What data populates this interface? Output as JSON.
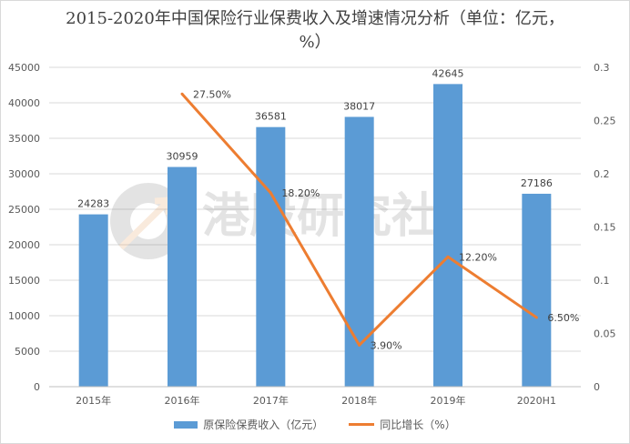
{
  "chart_data": {
    "type": "bar",
    "title": "2015-2020年中国保险行业保费收入及增速情况分析（单位：亿元，%）",
    "categories": [
      "2015年",
      "2016年",
      "2017年",
      "2018年",
      "2019年",
      "2020H1"
    ],
    "series": [
      {
        "name": "原保险保费收入（亿元）",
        "type": "bar",
        "axis": "left",
        "color": "#5b9bd5",
        "values": [
          24283,
          30959,
          36581,
          38017,
          42645,
          27186
        ],
        "labels": [
          "24283",
          "30959",
          "36581",
          "38017",
          "42645",
          "27186"
        ]
      },
      {
        "name": "同比增长（%）",
        "type": "line",
        "axis": "right",
        "color": "#ed7d31",
        "values": [
          null,
          0.275,
          0.182,
          0.039,
          0.122,
          0.065
        ],
        "labels": [
          "",
          "27.50%",
          "18.20%",
          "3.90%",
          "12.20%",
          "6.50%"
        ]
      }
    ],
    "y_left": {
      "min": 0,
      "max": 45000,
      "ticks": [
        "0",
        "5000",
        "10000",
        "15000",
        "20000",
        "25000",
        "30000",
        "35000",
        "40000",
        "45000"
      ]
    },
    "y_right": {
      "min": 0,
      "max": 0.3,
      "ticks": [
        "0",
        "0.05",
        "0.1",
        "0.15",
        "0.2",
        "0.25",
        "0.3"
      ]
    },
    "grid": true,
    "legend_position": "bottom",
    "watermark": "港股研究社"
  }
}
